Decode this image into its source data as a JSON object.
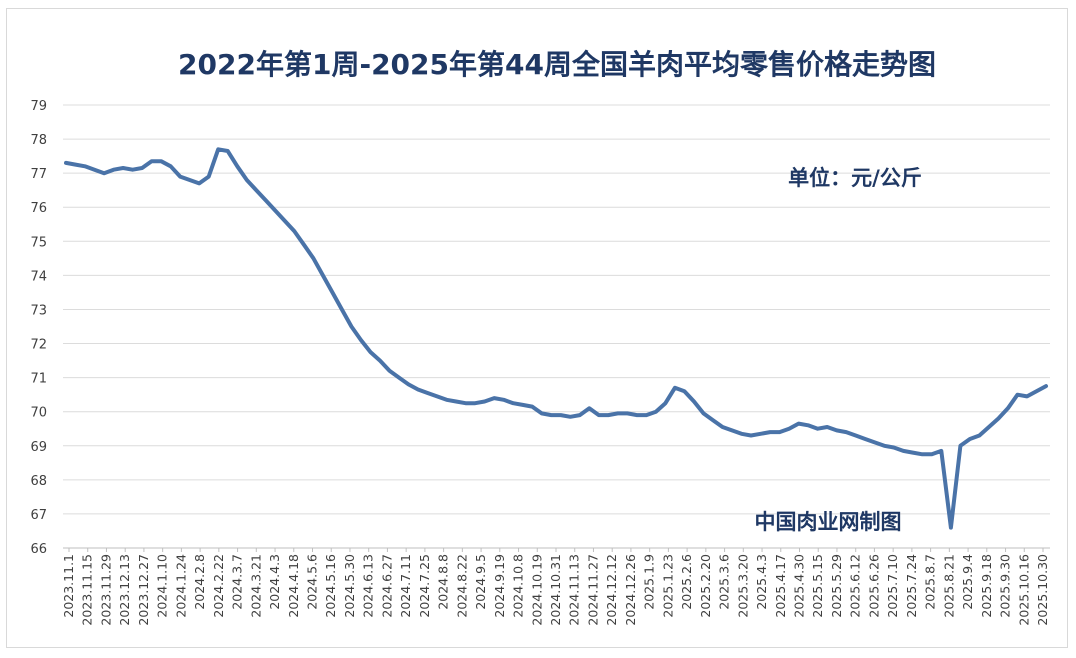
{
  "chart_data": {
    "type": "line",
    "title": "2022年第1周-2025年第44周全国羊肉平均零售价格走势图",
    "unit_label": "单位：元/公斤",
    "watermark": "中国肉业网制图",
    "ylim": [
      66,
      79
    ],
    "yticks": [
      66,
      67,
      68,
      69,
      70,
      71,
      72,
      73,
      74,
      75,
      76,
      77,
      78,
      79
    ],
    "grid": true,
    "legend": "none",
    "line_color": "#4a73a8",
    "xtick_labels": [
      "2023.11.1",
      "2023.11.15",
      "2023.11.29",
      "2023.12.13",
      "2023.12.27",
      "2024.1.10",
      "2024.1.24",
      "2024.2.8",
      "2024.2.22",
      "2024.3.7",
      "2024.3.21",
      "2024.4.3",
      "2024.4.18",
      "2024.5.6",
      "2024.5.16",
      "2024.5.30",
      "2024.6.13",
      "2024.6.27",
      "2024.7.11",
      "2024.7.25",
      "2024.8.8",
      "2024.8.22",
      "2024.9.5",
      "2024.9.19",
      "2024.10.8",
      "2024.10.19",
      "2024.10.31",
      "2024.11.13",
      "2024.11.27",
      "2024.12.12",
      "2024.12.26",
      "2025.1.9",
      "2025.1.23",
      "2025.2.6",
      "2025.2.20",
      "2025.3.6",
      "2025.3.20",
      "2025.4.3",
      "2025.4.17",
      "2025.4.30",
      "2025.5.15",
      "2025.5.29",
      "2025.6.12",
      "2025.6.26",
      "2025.7.10",
      "2025.7.24",
      "2025.8.7",
      "2025.8.21",
      "2025.9.4",
      "2025.9.18",
      "2025.9.30",
      "2025.10.16",
      "2025.10.30"
    ],
    "values": [
      77.3,
      77.25,
      77.2,
      77.1,
      77.0,
      77.1,
      77.15,
      77.1,
      77.15,
      77.35,
      77.35,
      77.2,
      76.9,
      76.8,
      76.7,
      76.9,
      77.7,
      77.65,
      77.2,
      76.8,
      76.5,
      76.2,
      75.9,
      75.6,
      75.3,
      74.9,
      74.5,
      74.0,
      73.5,
      73.0,
      72.5,
      72.1,
      71.75,
      71.5,
      71.2,
      71.0,
      70.8,
      70.65,
      70.55,
      70.45,
      70.35,
      70.3,
      70.25,
      70.25,
      70.3,
      70.4,
      70.35,
      70.25,
      70.2,
      70.15,
      69.95,
      69.9,
      69.9,
      69.85,
      69.9,
      70.1,
      69.9,
      69.9,
      69.95,
      69.95,
      69.9,
      69.9,
      70.0,
      70.25,
      70.7,
      70.6,
      70.3,
      69.95,
      69.75,
      69.55,
      69.45,
      69.35,
      69.3,
      69.35,
      69.4,
      69.4,
      69.5,
      69.65,
      69.6,
      69.5,
      69.55,
      69.45,
      69.4,
      69.3,
      69.2,
      69.1,
      69.0,
      68.95,
      68.85,
      68.8,
      68.75,
      68.75,
      68.85,
      66.6,
      69.0,
      69.2,
      69.3,
      69.55,
      69.8,
      70.1,
      70.5,
      70.45,
      70.6,
      70.75
    ]
  }
}
